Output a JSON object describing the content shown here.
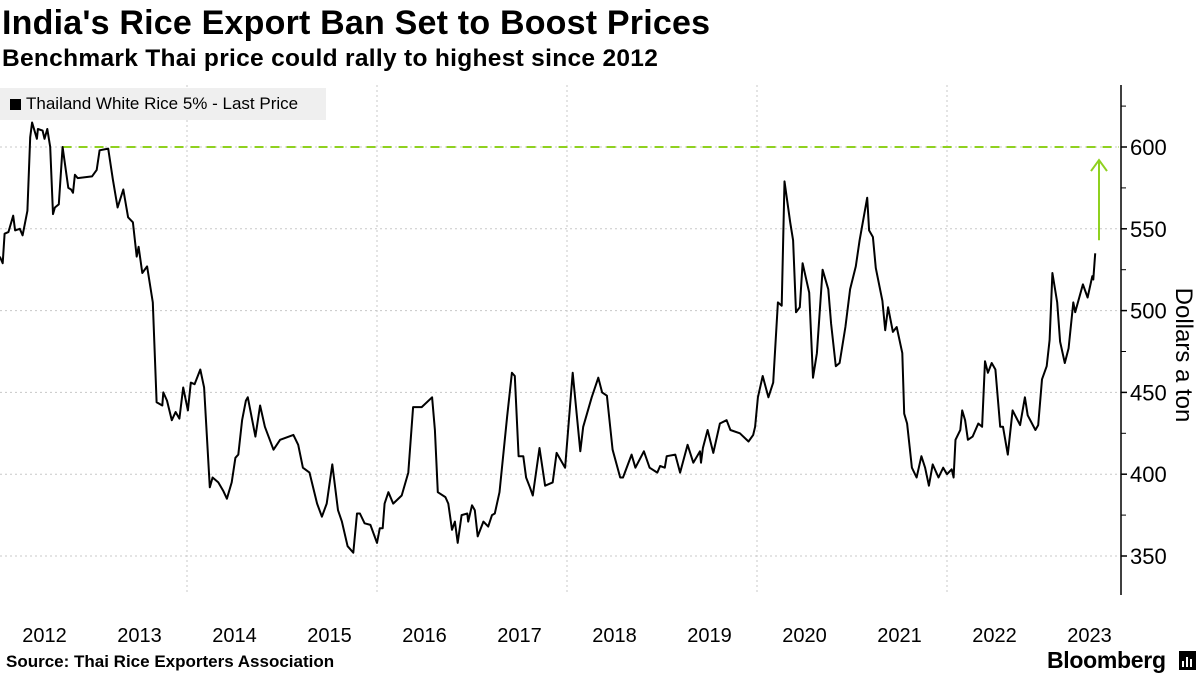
{
  "header": {
    "title": "India's Rice Export Ban Set to Boost Prices",
    "subtitle": "Benchmark Thai price could rally to highest since 2012"
  },
  "footer": {
    "source": "Source: Thai Rice Exporters Association",
    "brand": "Bloomberg"
  },
  "colors": {
    "line": "#000000",
    "reference": "#8fd11f",
    "grid": "#c8c8c8",
    "legend_bg": "#efefef"
  },
  "chart_data": {
    "type": "line",
    "title": "India's Rice Export Ban Set to Boost Prices",
    "subtitle": "Benchmark Thai price could rally to highest since 2012",
    "xlabel": "",
    "ylabel": "Dollars a ton",
    "ylim": [
      325,
      640
    ],
    "xlim": [
      2012.0,
      2023.75
    ],
    "y_ticks": [
      350,
      400,
      450,
      500,
      550,
      600
    ],
    "y_minor_ticks": [
      375,
      425,
      475,
      525,
      575,
      625
    ],
    "x_tick_labels": [
      "2012",
      "2013",
      "2014",
      "2015",
      "2016",
      "2017",
      "2018",
      "2019",
      "2020",
      "2021",
      "2022",
      "2023"
    ],
    "grid": true,
    "legend": {
      "position": "top-left",
      "entries": [
        "Thailand White Rice 5% - Last Price"
      ]
    },
    "annotations": [
      {
        "type": "reference-line",
        "value": 600,
        "from_year": 2012.69,
        "style": "dashed"
      },
      {
        "type": "arrow",
        "from": 543,
        "to": 592,
        "year": 2023.6
      }
    ],
    "series": [
      {
        "name": "Thailand White Rice 5% - Last Price",
        "points": [
          [
            2012.03,
            533
          ],
          [
            2012.06,
            529
          ],
          [
            2012.08,
            547
          ],
          [
            2012.12,
            548
          ],
          [
            2012.17,
            558
          ],
          [
            2012.19,
            549
          ],
          [
            2012.24,
            550
          ],
          [
            2012.27,
            546
          ],
          [
            2012.32,
            561
          ],
          [
            2012.35,
            606
          ],
          [
            2012.37,
            615
          ],
          [
            2012.42,
            605
          ],
          [
            2012.43,
            611
          ],
          [
            2012.48,
            610
          ],
          [
            2012.5,
            605
          ],
          [
            2012.53,
            611
          ],
          [
            2012.56,
            600
          ],
          [
            2012.59,
            559
          ],
          [
            2012.61,
            563
          ],
          [
            2012.65,
            565
          ],
          [
            2012.69,
            600
          ],
          [
            2012.75,
            575
          ],
          [
            2012.78,
            574
          ],
          [
            2012.8,
            572
          ],
          [
            2012.82,
            583
          ],
          [
            2012.85,
            581
          ],
          [
            2013.0,
            582
          ],
          [
            2013.05,
            586
          ],
          [
            2013.08,
            598
          ],
          [
            2013.17,
            599
          ],
          [
            2013.22,
            580
          ],
          [
            2013.27,
            563
          ],
          [
            2013.33,
            574
          ],
          [
            2013.38,
            557
          ],
          [
            2013.43,
            554
          ],
          [
            2013.47,
            533
          ],
          [
            2013.49,
            539
          ],
          [
            2013.53,
            523
          ],
          [
            2013.58,
            527
          ],
          [
            2013.64,
            505
          ],
          [
            2013.68,
            444
          ],
          [
            2013.74,
            442
          ],
          [
            2013.75,
            450
          ],
          [
            2013.79,
            445
          ],
          [
            2013.84,
            433
          ],
          [
            2013.88,
            438
          ],
          [
            2013.92,
            434
          ],
          [
            2013.96,
            453
          ],
          [
            2014.01,
            439
          ],
          [
            2014.04,
            456
          ],
          [
            2014.08,
            455
          ],
          [
            2014.14,
            464
          ],
          [
            2014.18,
            453
          ],
          [
            2014.24,
            392
          ],
          [
            2014.27,
            398
          ],
          [
            2014.33,
            395
          ],
          [
            2014.38,
            390
          ],
          [
            2014.42,
            385
          ],
          [
            2014.47,
            395
          ],
          [
            2014.51,
            410
          ],
          [
            2014.54,
            412
          ],
          [
            2014.58,
            433
          ],
          [
            2014.62,
            445
          ],
          [
            2014.64,
            447
          ],
          [
            2014.72,
            423
          ],
          [
            2014.77,
            442
          ],
          [
            2014.82,
            429
          ],
          [
            2014.91,
            415
          ],
          [
            2014.98,
            421
          ],
          [
            2015.12,
            424
          ],
          [
            2015.17,
            418
          ],
          [
            2015.22,
            404
          ],
          [
            2015.29,
            401
          ],
          [
            2015.37,
            382
          ],
          [
            2015.42,
            374
          ],
          [
            2015.47,
            382
          ],
          [
            2015.53,
            406
          ],
          [
            2015.59,
            378
          ],
          [
            2015.63,
            371
          ],
          [
            2015.69,
            356
          ],
          [
            2015.75,
            352
          ],
          [
            2015.79,
            376
          ],
          [
            2015.82,
            376
          ],
          [
            2015.87,
            370
          ],
          [
            2015.93,
            369
          ],
          [
            2016.0,
            358
          ],
          [
            2016.03,
            367
          ],
          [
            2016.06,
            367
          ],
          [
            2016.08,
            382
          ],
          [
            2016.12,
            389
          ],
          [
            2016.17,
            382
          ],
          [
            2016.26,
            387
          ],
          [
            2016.33,
            401
          ],
          [
            2016.38,
            441
          ],
          [
            2016.47,
            441
          ],
          [
            2016.58,
            447
          ],
          [
            2016.61,
            427
          ],
          [
            2016.64,
            389
          ],
          [
            2016.72,
            386
          ],
          [
            2016.75,
            382
          ],
          [
            2016.79,
            366
          ],
          [
            2016.82,
            371
          ],
          [
            2016.85,
            358
          ],
          [
            2016.89,
            375
          ],
          [
            2016.95,
            376
          ],
          [
            2016.96,
            371
          ],
          [
            2017.0,
            381
          ],
          [
            2017.03,
            378
          ],
          [
            2017.06,
            362
          ],
          [
            2017.12,
            371
          ],
          [
            2017.17,
            368
          ],
          [
            2017.21,
            375
          ],
          [
            2017.24,
            376
          ],
          [
            2017.29,
            389
          ],
          [
            2017.37,
            435
          ],
          [
            2017.42,
            462
          ],
          [
            2017.45,
            460
          ],
          [
            2017.49,
            411
          ],
          [
            2017.54,
            411
          ],
          [
            2017.57,
            398
          ],
          [
            2017.61,
            392
          ],
          [
            2017.64,
            387
          ],
          [
            2017.71,
            416
          ],
          [
            2017.77,
            393
          ],
          [
            2017.85,
            395
          ],
          [
            2017.89,
            413
          ],
          [
            2017.98,
            404
          ],
          [
            2018.06,
            462
          ],
          [
            2018.14,
            414
          ],
          [
            2018.17,
            429
          ],
          [
            2018.26,
            447
          ],
          [
            2018.33,
            459
          ],
          [
            2018.37,
            450
          ],
          [
            2018.42,
            448
          ],
          [
            2018.48,
            415
          ],
          [
            2018.56,
            398
          ],
          [
            2018.59,
            398
          ],
          [
            2018.68,
            412
          ],
          [
            2018.72,
            404
          ],
          [
            2018.81,
            414
          ],
          [
            2018.87,
            404
          ],
          [
            2018.95,
            401
          ],
          [
            2018.98,
            405
          ],
          [
            2019.03,
            404
          ],
          [
            2019.05,
            411
          ],
          [
            2019.14,
            412
          ],
          [
            2019.19,
            401
          ],
          [
            2019.27,
            418
          ],
          [
            2019.33,
            407
          ],
          [
            2019.4,
            414
          ],
          [
            2019.41,
            407
          ],
          [
            2019.43,
            416
          ],
          [
            2019.48,
            427
          ],
          [
            2019.54,
            413
          ],
          [
            2019.61,
            431
          ],
          [
            2019.68,
            433
          ],
          [
            2019.72,
            427
          ],
          [
            2019.82,
            425
          ],
          [
            2019.91,
            420
          ],
          [
            2019.96,
            424
          ],
          [
            2019.98,
            429
          ],
          [
            2020.01,
            447
          ],
          [
            2020.06,
            460
          ],
          [
            2020.12,
            447
          ],
          [
            2020.17,
            456
          ],
          [
            2020.22,
            505
          ],
          [
            2020.26,
            503
          ],
          [
            2020.29,
            579
          ],
          [
            2020.35,
            554
          ],
          [
            2020.38,
            543
          ],
          [
            2020.41,
            499
          ],
          [
            2020.45,
            502
          ],
          [
            2020.48,
            529
          ],
          [
            2020.55,
            511
          ],
          [
            2020.59,
            459
          ],
          [
            2020.63,
            474
          ],
          [
            2020.69,
            525
          ],
          [
            2020.75,
            513
          ],
          [
            2020.78,
            492
          ],
          [
            2020.83,
            466
          ],
          [
            2020.87,
            468
          ],
          [
            2020.93,
            490
          ],
          [
            2020.98,
            513
          ],
          [
            2021.04,
            527
          ],
          [
            2021.08,
            543
          ],
          [
            2021.16,
            569
          ],
          [
            2021.18,
            549
          ],
          [
            2021.22,
            545
          ],
          [
            2021.25,
            526
          ],
          [
            2021.32,
            506
          ],
          [
            2021.35,
            488
          ],
          [
            2021.38,
            502
          ],
          [
            2021.43,
            487
          ],
          [
            2021.47,
            490
          ],
          [
            2021.53,
            474
          ],
          [
            2021.55,
            437
          ],
          [
            2021.58,
            431
          ],
          [
            2021.63,
            404
          ],
          [
            2021.68,
            398
          ],
          [
            2021.73,
            411
          ],
          [
            2021.77,
            404
          ],
          [
            2021.81,
            393
          ],
          [
            2021.85,
            406
          ],
          [
            2021.91,
            398
          ],
          [
            2021.96,
            404
          ],
          [
            2022.0,
            400
          ],
          [
            2022.05,
            403
          ],
          [
            2022.07,
            398
          ],
          [
            2022.09,
            421
          ],
          [
            2022.14,
            427
          ],
          [
            2022.16,
            439
          ],
          [
            2022.19,
            433
          ],
          [
            2022.22,
            421
          ],
          [
            2022.27,
            423
          ],
          [
            2022.33,
            431
          ],
          [
            2022.37,
            429
          ],
          [
            2022.4,
            469
          ],
          [
            2022.43,
            462
          ],
          [
            2022.47,
            468
          ],
          [
            2022.51,
            464
          ],
          [
            2022.56,
            429
          ],
          [
            2022.59,
            429
          ],
          [
            2022.64,
            412
          ],
          [
            2022.69,
            439
          ],
          [
            2022.77,
            430
          ],
          [
            2022.82,
            447
          ],
          [
            2022.85,
            436
          ],
          [
            2022.93,
            427
          ],
          [
            2022.96,
            430
          ],
          [
            2023.0,
            458
          ],
          [
            2023.05,
            466
          ],
          [
            2023.08,
            482
          ],
          [
            2023.11,
            523
          ],
          [
            2023.16,
            505
          ],
          [
            2023.19,
            481
          ],
          [
            2023.24,
            468
          ],
          [
            2023.28,
            477
          ],
          [
            2023.33,
            505
          ],
          [
            2023.35,
            499
          ],
          [
            2023.43,
            516
          ],
          [
            2023.48,
            508
          ],
          [
            2023.53,
            521
          ],
          [
            2023.54,
            519
          ],
          [
            2023.56,
            535
          ]
        ]
      }
    ]
  }
}
